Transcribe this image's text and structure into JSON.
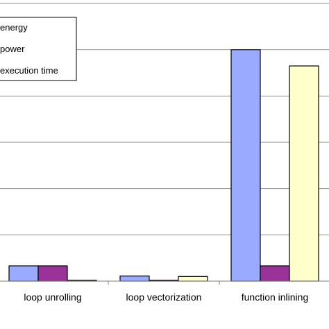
{
  "chart_data": {
    "type": "bar",
    "categories": [
      "loop unrolling",
      "loop vectorization",
      "function inlining"
    ],
    "series": [
      {
        "name": "energy",
        "values": [
          0.33,
          0.11,
          5.0
        ],
        "color": "#99aaff"
      },
      {
        "name": "power",
        "values": [
          0.33,
          0.02,
          0.33
        ],
        "color": "#993399"
      },
      {
        "name": "execution time",
        "values": [
          0.02,
          0.1,
          4.65
        ],
        "color": "#ffffcc"
      }
    ],
    "ylim": [
      0,
      6
    ],
    "grid": true,
    "legend_position": "top-left",
    "title": "",
    "xlabel": "",
    "ylabel": ""
  }
}
